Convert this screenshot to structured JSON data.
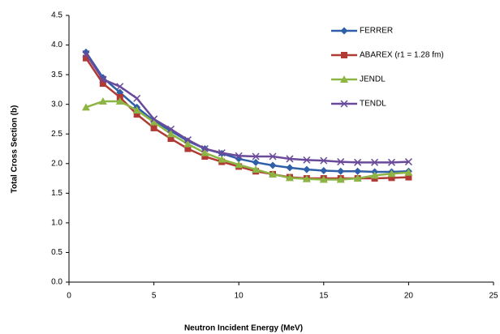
{
  "chart_data": {
    "type": "line",
    "x_label": "Neutron Incident Energy (MeV)",
    "y_label": "Total Cross Section (b)",
    "x": [
      1,
      2,
      3,
      4,
      5,
      6,
      7,
      8,
      9,
      10,
      11,
      12,
      13,
      14,
      15,
      16,
      17,
      18,
      19,
      20
    ],
    "series": [
      {
        "name": "FERRER",
        "color": "#2e5fa8",
        "marker": "diamond",
        "values": [
          3.88,
          3.45,
          3.2,
          2.95,
          2.72,
          2.55,
          2.38,
          2.25,
          2.17,
          2.08,
          2.02,
          1.97,
          1.93,
          1.9,
          1.88,
          1.87,
          1.87,
          1.86,
          1.86,
          1.87
        ]
      },
      {
        "name": "ABAREX (r1 = 1.28 fm)",
        "color": "#b03a34",
        "marker": "square",
        "values": [
          3.78,
          3.35,
          3.12,
          2.83,
          2.6,
          2.42,
          2.25,
          2.12,
          2.03,
          1.95,
          1.87,
          1.82,
          1.77,
          1.75,
          1.75,
          1.75,
          1.75,
          1.75,
          1.76,
          1.77
        ]
      },
      {
        "name": "JENDL",
        "color": "#8db543",
        "marker": "triangle",
        "values": [
          2.95,
          3.05,
          3.05,
          2.9,
          2.7,
          2.5,
          2.33,
          2.18,
          2.07,
          1.98,
          1.9,
          1.82,
          1.76,
          1.74,
          1.73,
          1.73,
          1.75,
          1.8,
          1.83,
          1.85
        ]
      },
      {
        "name": "TENDL",
        "color": "#6a4a9a",
        "marker": "cross",
        "values": [
          3.85,
          3.42,
          3.3,
          3.1,
          2.75,
          2.58,
          2.4,
          2.25,
          2.18,
          2.13,
          2.12,
          2.12,
          2.08,
          2.06,
          2.05,
          2.03,
          2.02,
          2.02,
          2.02,
          2.03
        ]
      }
    ],
    "xlim": [
      0,
      25
    ],
    "xticks": [
      0,
      5,
      10,
      15,
      20,
      25
    ],
    "ylim": [
      0,
      4.5
    ],
    "yticks": [
      {
        "value": 0,
        "label": "0.0"
      },
      0.5,
      {
        "value": 1,
        "label": "1.0"
      },
      1.5,
      {
        "value": 2,
        "label": "2.0"
      },
      2.5,
      {
        "value": 3,
        "label": "3.0"
      },
      3.5,
      {
        "value": 4,
        "label": "4.0"
      },
      4.5
    ],
    "legend": "upper right",
    "grid": false
  }
}
